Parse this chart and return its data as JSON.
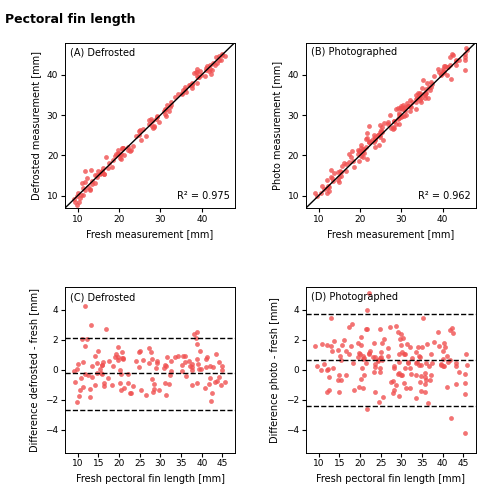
{
  "title": "Pectoral fin length",
  "panel_A_label": "(A) Defrosted",
  "panel_B_label": "(B) Photographed",
  "panel_C_label": "(C) Defrosted",
  "panel_D_label": "(D) Photographed",
  "r2_A": "R² = 0.975",
  "r2_B": "R² = 0.962",
  "dot_color": "#f05050",
  "dot_alpha": 0.8,
  "dot_size": 12,
  "xlim_AB": [
    7,
    48
  ],
  "ylim_AB": [
    7,
    48
  ],
  "xticks_AB": [
    10,
    20,
    30,
    40
  ],
  "yticks_AB": [
    10,
    20,
    30,
    40
  ],
  "xlim_CD": [
    7,
    48
  ],
  "ylim_C": [
    -5.5,
    5.5
  ],
  "ylim_D": [
    -5.5,
    5.5
  ],
  "xticks_CD": [
    10,
    15,
    20,
    25,
    30,
    35,
    40,
    45
  ],
  "yticks_C": [
    -4,
    -2,
    0,
    2,
    4
  ],
  "yticks_D": [
    -4,
    -2,
    0,
    2,
    4
  ],
  "xlabel_AB": "Fresh measurement [mm]",
  "ylabel_A": "Defrosted measurement [mm]",
  "ylabel_B": "Photo measurement [mm]",
  "xlabel_CD": "Fresh pectoral fin length [mm]",
  "ylabel_C": "Difference defrosted - fresh [mm]",
  "ylabel_D": "Difference photo - fresh [mm]",
  "hline_C_mean": -0.2,
  "hline_C_upper": 2.1,
  "hline_C_lower": -2.7,
  "hline_D_mean": 0.65,
  "hline_D_upper": 3.7,
  "hline_D_lower": -2.4,
  "seed_A": 42,
  "seed_B": 123,
  "n_points_A": 130,
  "n_points_B": 170,
  "title_fontsize": 9,
  "label_fontsize": 7,
  "panel_fontsize": 7,
  "tick_fontsize": 6.5
}
